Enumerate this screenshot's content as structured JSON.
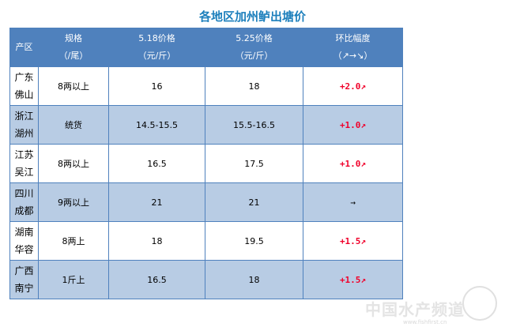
{
  "title": "各地区加州鲈出塘价",
  "headers": [
    {
      "l1": "产区",
      "l2": ""
    },
    {
      "l1": "规格",
      "l2": "（/尾）"
    },
    {
      "l1": "5.18价格",
      "l2": "（元/斤）"
    },
    {
      "l1": "5.25价格",
      "l2": "（元/斤）"
    },
    {
      "l1": "环比幅度",
      "l2": "（↗→↘）"
    }
  ],
  "rows": [
    {
      "r1": "广东",
      "r2": "佛山",
      "spec": "8两以上",
      "p1": "16",
      "p2": "18",
      "chg": "+2.0↗"
    },
    {
      "r1": "浙江",
      "r2": "湖州",
      "spec": "统货",
      "p1": "14.5-15.5",
      "p2": "15.5-16.5",
      "chg": "+1.0↗"
    },
    {
      "r1": "江苏",
      "r2": "吴江",
      "spec": "8两以上",
      "p1": "16.5",
      "p2": "17.5",
      "chg": "+1.0↗"
    },
    {
      "r1": "四川",
      "r2": "成都",
      "spec": "9两以上",
      "p1": "21",
      "p2": "21",
      "chg": "→"
    },
    {
      "r1": "湖南",
      "r2": "华容",
      "spec": "8两上",
      "p1": "18",
      "p2": "19.5",
      "chg": "+1.5↗"
    },
    {
      "r1": "广西",
      "r2": "南宁",
      "spec": "1斤上",
      "p1": "16.5",
      "p2": "18",
      "chg": "+1.5↗"
    }
  ],
  "watermark": {
    "text": "中国水产频道",
    "url": "www.fishfirst.cn"
  },
  "colors": {
    "header": "#4f81bd",
    "alt_row": "#b8cce4",
    "title": "#1c7fbc",
    "up": "#f0002a"
  }
}
